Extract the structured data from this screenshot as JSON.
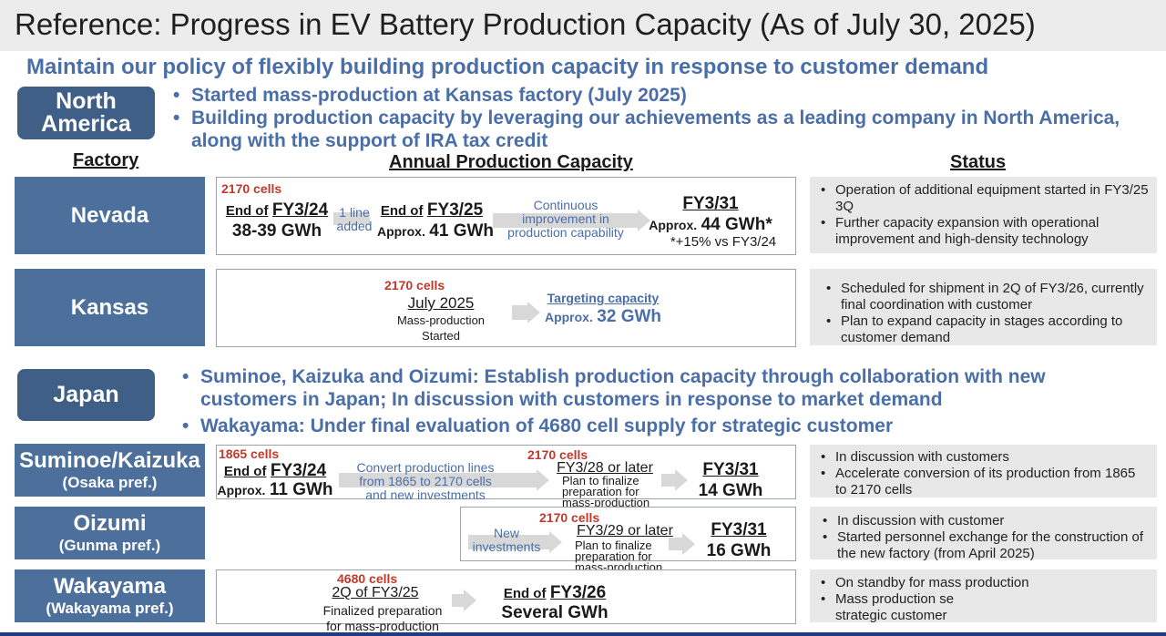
{
  "title": "Reference: Progress in EV Battery Production Capacity (As of July 30, 2025)",
  "policy": "Maintain our policy of flexibly building production capacity in response to customer demand",
  "north_america": {
    "label_line1": "North",
    "label_line2": "America",
    "bullets": [
      "Started mass-production at Kansas factory (July 2025)",
      "Building production capacity by leveraging our achievements as a leading company in North America, along with the support of IRA tax credit"
    ]
  },
  "headers": {
    "factory": "Factory",
    "capacity": "Annual Production Capacity",
    "status": "Status"
  },
  "nevada": {
    "name": "Nevada",
    "cells": "2170 cells",
    "end_of_1": "End of",
    "fy1": "FY3/24",
    "val1": "38-39 GWh",
    "line_added": "1 line added",
    "end_of_2": "End of",
    "fy2": "FY3/25",
    "approx2": "Approx.",
    "val2": "41 GWh",
    "improve": "Continuous improvement in production capability",
    "fy3": "FY3/31",
    "approx3": "Approx.",
    "val3": "44 GWh*",
    "note": "*+15% vs FY3/24",
    "status": [
      "Operation of additional equipment started in FY3/25 3Q",
      "Further capacity expansion with operational improvement and high-density technology"
    ]
  },
  "kansas": {
    "name": "Kansas",
    "cells": "2170 cells",
    "date": "July 2025",
    "started": "Mass-production Started",
    "target": "Targeting capacity",
    "approx": "Approx.",
    "val": "32 GWh",
    "status": [
      "Scheduled for shipment in 2Q of FY3/26, currently final coordination with customer",
      "Plan to expand capacity in stages according to customer demand"
    ]
  },
  "japan": {
    "label": "Japan",
    "bullets": [
      "Suminoe, Kaizuka and Oizumi: Establish production capacity through collaboration with new customers in Japan; In discussion with customers in response to market demand",
      "Wakayama: Under final evaluation of 4680 cell supply for strategic customer"
    ]
  },
  "suminoe": {
    "name": "Suminoe/Kaizuka",
    "pref": "(Osaka pref.)",
    "cells1": "1865 cells",
    "end_of": "End of",
    "fy1": "FY3/24",
    "approx": "Approx.",
    "val1": "11 GWh",
    "convert": "Convert production lines from 1865 to 2170 cells and new investments",
    "cells2": "2170 cells",
    "fy2": "FY3/28 or later",
    "plan": "Plan to finalize preparation for mass-production",
    "fy3": "FY3/31",
    "val3": "14 GWh",
    "status": [
      "In discussion with customers",
      "Accelerate conversion of its production from 1865 to 2170 cells"
    ]
  },
  "oizumi": {
    "name": "Oizumi",
    "pref": "(Gunma pref.)",
    "new_inv": "New investments",
    "cells": "2170 cells",
    "fy2": "FY3/29 or later",
    "plan": "Plan to finalize preparation for mass-production",
    "fy3": "FY3/31",
    "val3": "16 GWh",
    "status": [
      "In discussion with customer",
      "Started personnel exchange for the construction of the new factory (from April 2025)"
    ]
  },
  "wakayama": {
    "name": "Wakayama",
    "pref": "(Wakayama pref.)",
    "cells": "4680 cells",
    "q": "2Q of FY3/25",
    "finalized": "Finalized preparation for mass-production",
    "end_of": "End of",
    "fy": "FY3/26",
    "val": "Several GWh",
    "status": [
      "On standby for mass production",
      "Mass production se",
      "strategic customer"
    ]
  }
}
